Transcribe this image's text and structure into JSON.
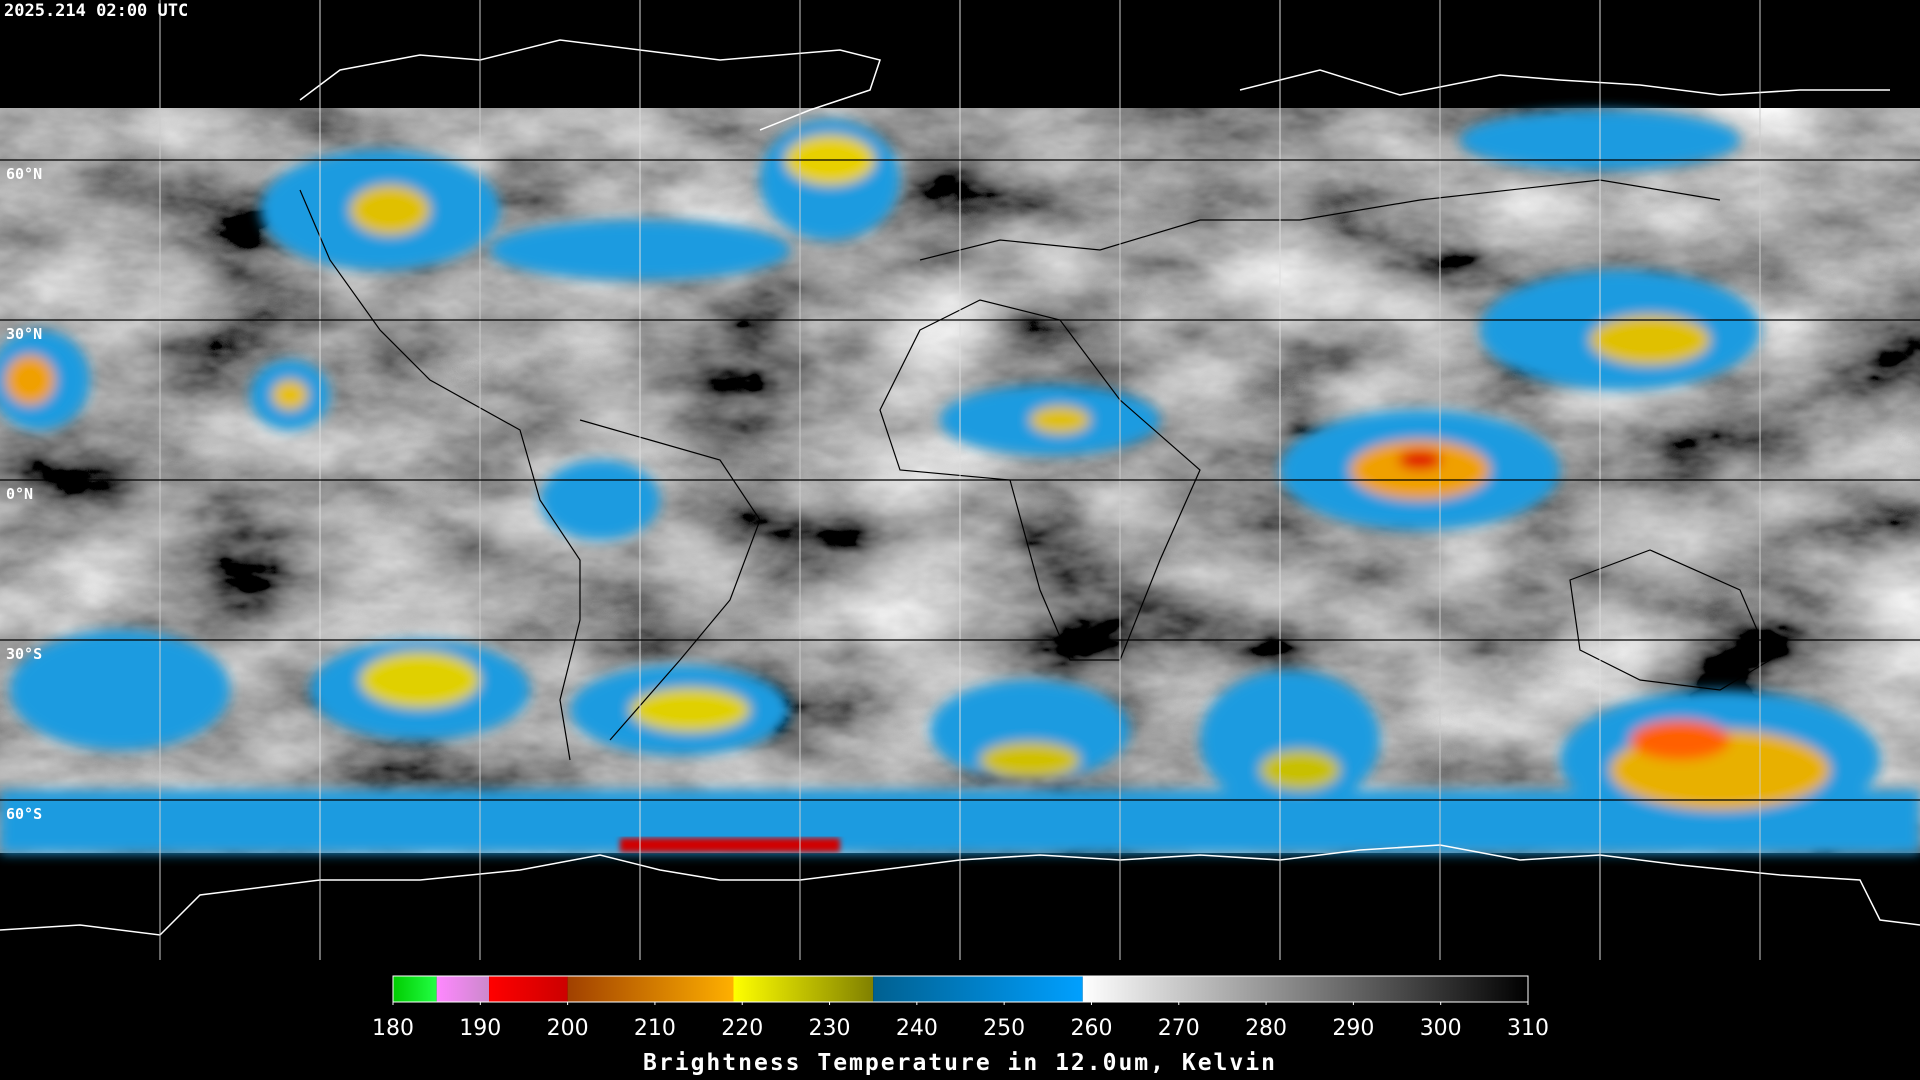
{
  "title": "2025.214 02:00 UTC",
  "lat_labels": [
    "60°N",
    "30°N",
    "0°N",
    "30°S",
    "60°S"
  ],
  "colorbar": {
    "range": [
      180,
      310
    ],
    "ticks": [
      180,
      190,
      200,
      210,
      220,
      230,
      240,
      250,
      260,
      270,
      280,
      290,
      300,
      310
    ],
    "segments": [
      {
        "from": 180,
        "to": 185,
        "colors": [
          "#00cc00",
          "#22ff44"
        ]
      },
      {
        "from": 185,
        "to": 191,
        "colors": [
          "#ff88ff",
          "#cc88cc"
        ]
      },
      {
        "from": 191,
        "to": 200,
        "colors": [
          "#ff0000",
          "#cc0000"
        ]
      },
      {
        "from": 200,
        "to": 219,
        "colors": [
          "#a04000",
          "#ffb000"
        ]
      },
      {
        "from": 219,
        "to": 235,
        "colors": [
          "#ffff00",
          "#808000"
        ]
      },
      {
        "from": 235,
        "to": 259,
        "colors": [
          "#006090",
          "#00a0ff"
        ]
      },
      {
        "from": 259,
        "to": 310,
        "colors": [
          "#ffffff",
          "#000000"
        ]
      }
    ],
    "label": "Brightness Temperature in 12.0um, Kelvin"
  }
}
